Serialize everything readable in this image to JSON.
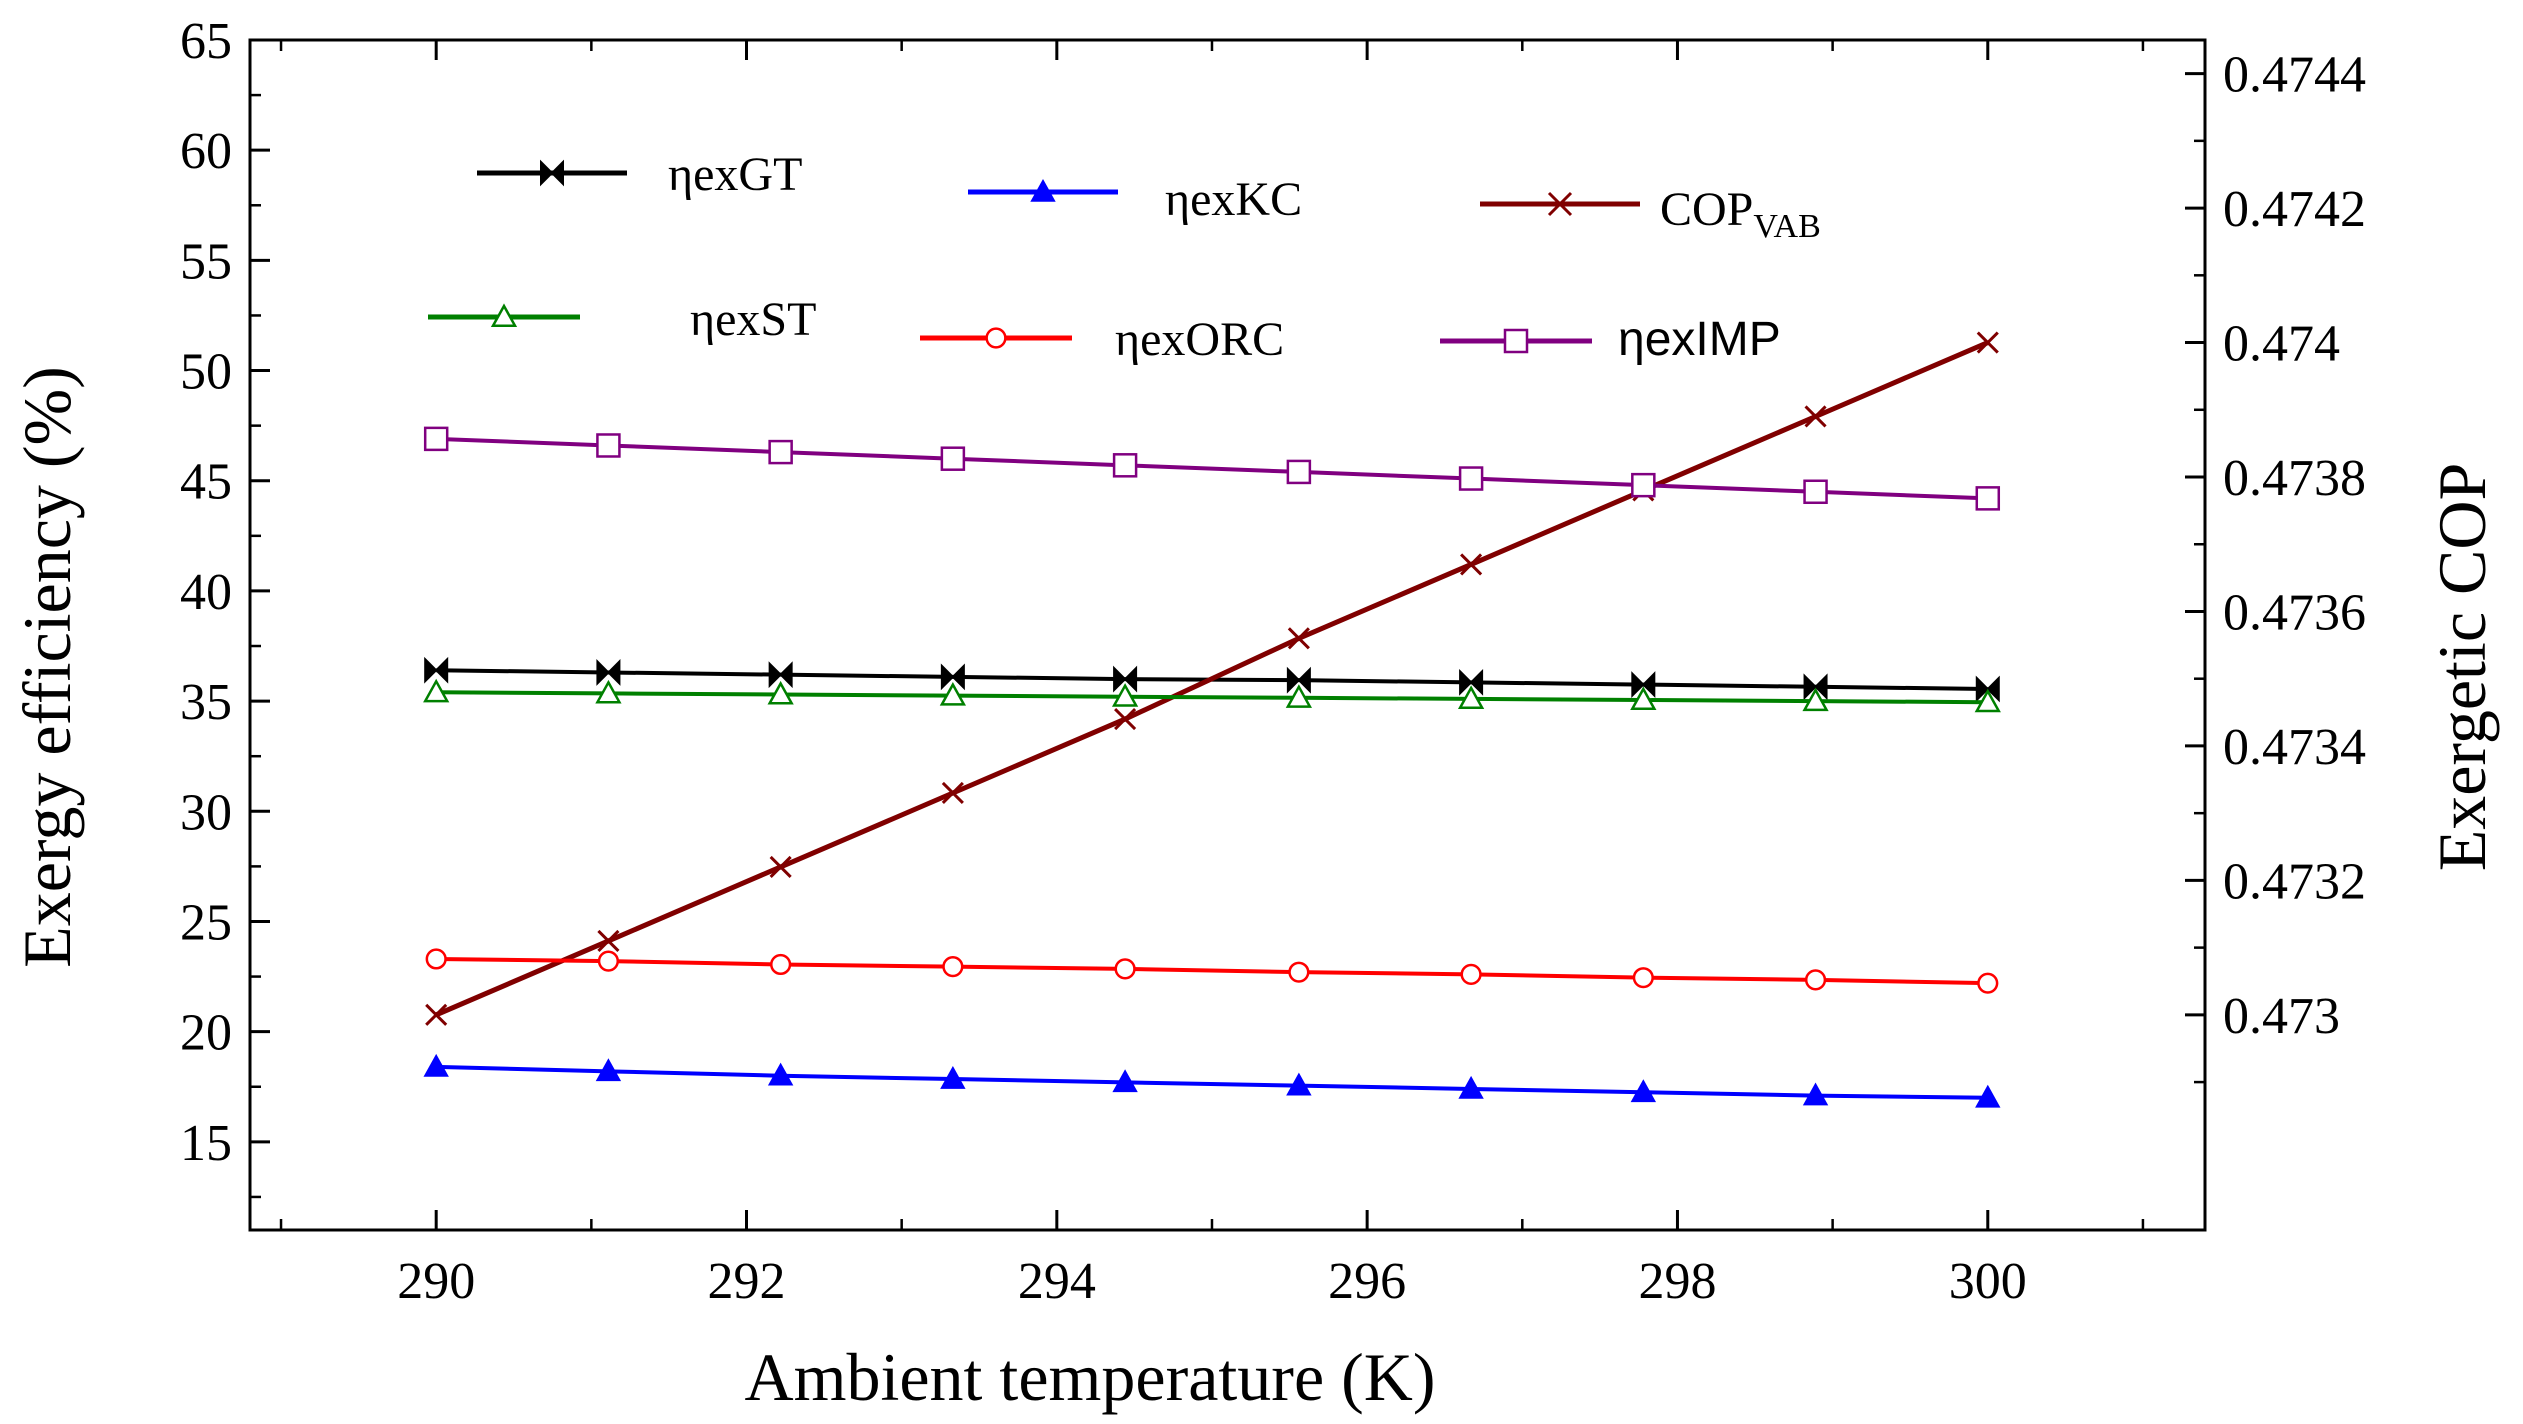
{
  "chart_data": {
    "type": "line",
    "xlabel": "Ambient temperature (K)",
    "ylabel": "Exergy efficiency (%)",
    "y2label": "Exergetic COP",
    "xlim": [
      288.8,
      301.4
    ],
    "ylim": [
      11,
      65
    ],
    "y2lim": [
      0.47268,
      0.47445
    ],
    "xticks": [
      290,
      292,
      294,
      296,
      298,
      300
    ],
    "yticks": [
      15,
      20,
      25,
      30,
      35,
      40,
      45,
      50,
      55,
      60,
      65
    ],
    "y2ticks": [
      0.473,
      0.4732,
      0.4734,
      0.4736,
      0.4738,
      0.474,
      0.4742,
      0.4744
    ],
    "y2tick_labels": [
      "0.473",
      "0.4732",
      "0.4734",
      "0.4736",
      "0.4738",
      "0.474",
      "0.4742",
      "0.4744"
    ],
    "grid": false,
    "x": [
      290,
      291.11,
      292.22,
      293.33,
      294.44,
      295.56,
      296.67,
      297.78,
      298.89,
      300
    ],
    "series": [
      {
        "name": "ηexGT",
        "name_prefix": "η",
        "name_main": "exGT",
        "axis": "left",
        "color": "#000000",
        "marker": "bowtie",
        "values": [
          36.4,
          36.3,
          36.2,
          36.1,
          36.0,
          35.95,
          35.85,
          35.75,
          35.65,
          35.55
        ]
      },
      {
        "name": "ηexKC",
        "name_prefix": "η",
        "name_main": "exKC",
        "axis": "left",
        "color": "#0000ff",
        "marker": "triangle-filled",
        "values": [
          18.4,
          18.2,
          18.0,
          17.85,
          17.7,
          17.55,
          17.4,
          17.25,
          17.1,
          17.0
        ]
      },
      {
        "name": "COPVAB",
        "name_main": "COP",
        "name_sub": "VAB",
        "axis": "right",
        "color": "#800000",
        "marker": "x",
        "values": [
          0.473,
          0.47311,
          0.47322,
          0.47333,
          0.47344,
          0.47356,
          0.47367,
          0.47378,
          0.47389,
          0.474
        ]
      },
      {
        "name": "ηexST",
        "name_prefix": "η",
        "name_main": "exST",
        "axis": "left",
        "color": "#008000",
        "marker": "triangle-open",
        "values": [
          35.4,
          35.35,
          35.3,
          35.25,
          35.2,
          35.15,
          35.1,
          35.05,
          35.0,
          34.95
        ]
      },
      {
        "name": "ηexORC",
        "name_prefix": "η",
        "name_main": "exORC",
        "axis": "left",
        "color": "#ff0000",
        "marker": "circle-open",
        "values": [
          23.3,
          23.2,
          23.05,
          22.95,
          22.85,
          22.7,
          22.6,
          22.45,
          22.35,
          22.2
        ]
      },
      {
        "name": "ηexIMP",
        "name_prefix": "η",
        "name_main": "exIMP",
        "axis": "left",
        "color": "#800080",
        "marker": "square-open",
        "values": [
          46.9,
          46.6,
          46.3,
          46.0,
          45.7,
          45.4,
          45.1,
          44.8,
          44.5,
          44.2
        ]
      }
    ],
    "legend": "top, 3 columns"
  }
}
